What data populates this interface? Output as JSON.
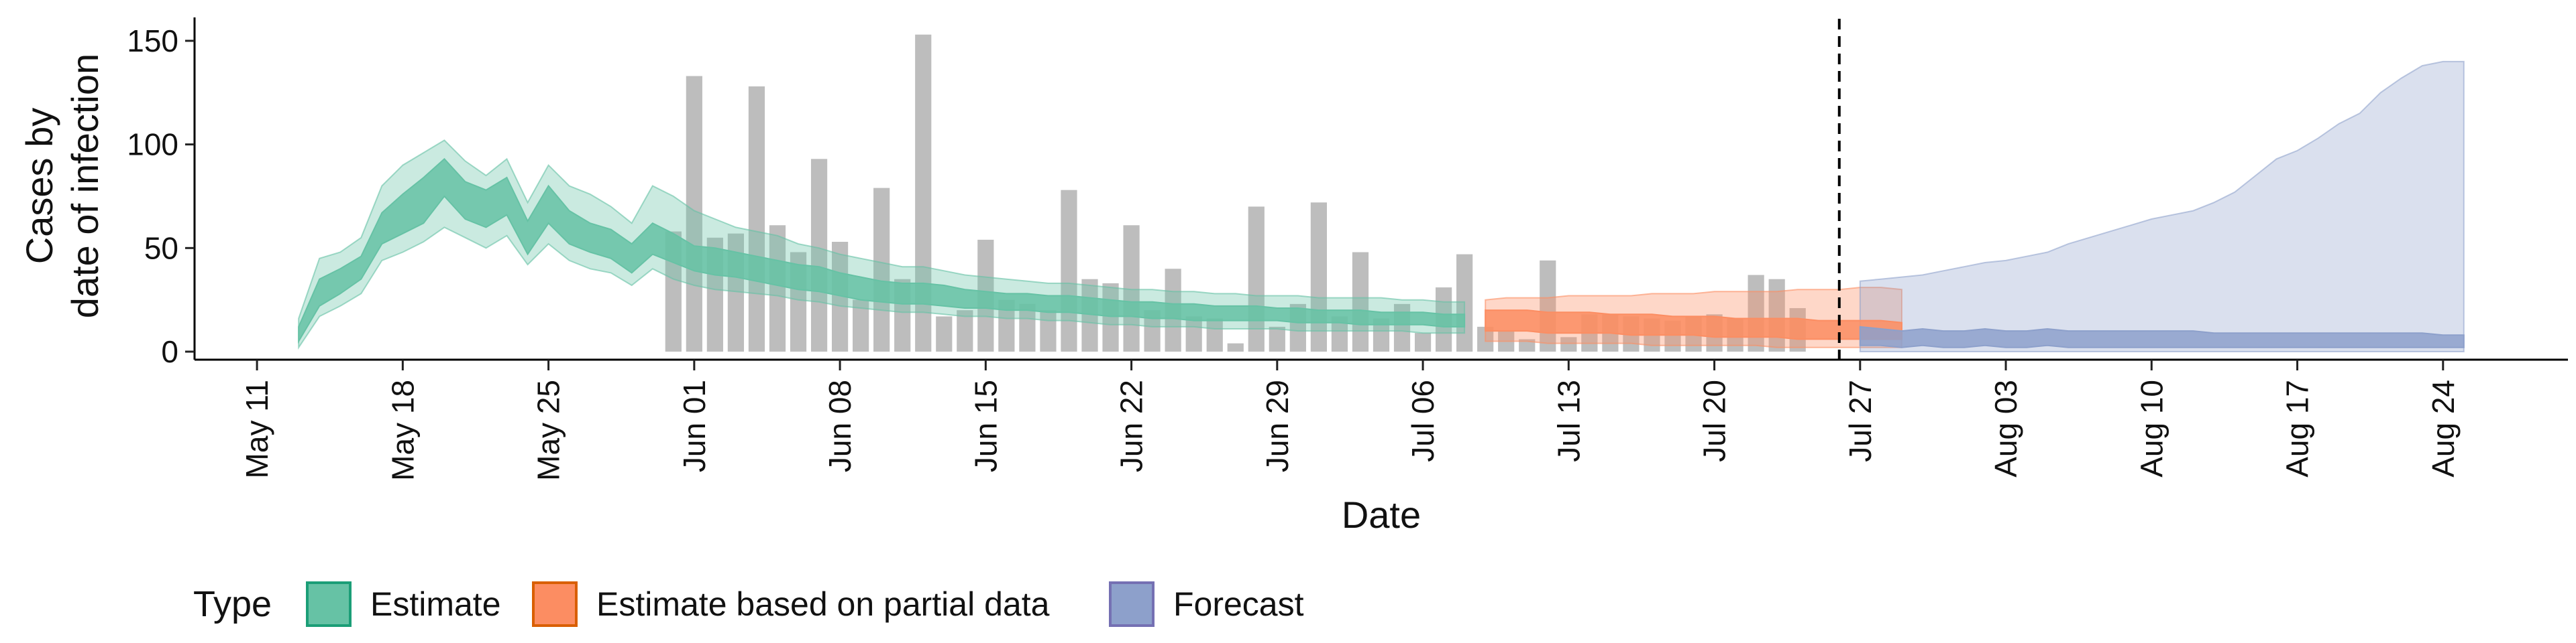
{
  "chart_data": {
    "type": "bar+area",
    "xlabel": "Date",
    "ylabel_lines": [
      "Cases by",
      "date of infection"
    ],
    "ylim": [
      0,
      160
    ],
    "y_ticks": [
      0,
      50,
      100,
      150
    ],
    "x_range": [
      "2020-05-08",
      "2020-08-30"
    ],
    "x_ticks": [
      {
        "date": "2020-05-11",
        "label": "May 11"
      },
      {
        "date": "2020-05-18",
        "label": "May 18"
      },
      {
        "date": "2020-05-25",
        "label": "May 25"
      },
      {
        "date": "2020-06-01",
        "label": "Jun 01"
      },
      {
        "date": "2020-06-08",
        "label": "Jun 08"
      },
      {
        "date": "2020-06-15",
        "label": "Jun 15"
      },
      {
        "date": "2020-06-22",
        "label": "Jun 22"
      },
      {
        "date": "2020-06-29",
        "label": "Jun 29"
      },
      {
        "date": "2020-07-06",
        "label": "Jul 06"
      },
      {
        "date": "2020-07-13",
        "label": "Jul 13"
      },
      {
        "date": "2020-07-20",
        "label": "Jul 20"
      },
      {
        "date": "2020-07-27",
        "label": "Jul 27"
      },
      {
        "date": "2020-08-03",
        "label": "Aug 03"
      },
      {
        "date": "2020-08-10",
        "label": "Aug 10"
      },
      {
        "date": "2020-08-17",
        "label": "Aug 17"
      },
      {
        "date": "2020-08-24",
        "label": "Aug 24"
      }
    ],
    "vline_date": "2020-07-26",
    "reported_cases": {
      "start_date": "2020-05-31",
      "color": "#bdbdbd",
      "values": [
        58,
        133,
        55,
        57,
        128,
        61,
        48,
        93,
        53,
        25,
        79,
        35,
        153,
        17,
        20,
        54,
        25,
        23,
        20,
        78,
        35,
        33,
        61,
        20,
        40,
        17,
        16,
        4,
        70,
        12,
        23,
        72,
        17,
        48,
        16,
        23,
        9,
        31,
        47,
        12,
        10,
        6,
        44,
        7,
        18,
        18,
        17,
        16,
        15,
        17,
        18,
        16,
        37,
        35,
        21
      ]
    },
    "series": [
      {
        "name": "Estimate",
        "color": "#66c2a5",
        "start_date": "2020-05-13",
        "median": [
          8,
          28,
          33,
          40,
          60,
          68,
          75,
          85,
          73,
          70,
          75,
          55,
          72,
          60,
          55,
          52,
          45,
          55,
          50,
          45,
          43,
          42,
          40,
          38,
          36,
          35,
          32,
          30,
          29,
          28,
          28,
          27,
          25,
          25,
          24,
          24,
          23,
          23,
          22,
          21,
          20,
          20,
          20,
          19,
          19,
          18,
          18,
          18,
          17,
          17,
          17,
          16,
          16,
          16,
          16,
          15,
          15
        ],
        "lower_50": [
          5,
          22,
          28,
          35,
          52,
          57,
          62,
          75,
          64,
          60,
          66,
          47,
          62,
          52,
          48,
          45,
          38,
          47,
          43,
          39,
          37,
          36,
          34,
          32,
          30,
          29,
          27,
          25,
          24,
          23,
          23,
          22,
          21,
          21,
          20,
          20,
          19,
          19,
          18,
          17,
          17,
          16,
          16,
          15,
          15,
          15,
          15,
          15,
          14,
          14,
          14,
          13,
          13,
          13,
          13,
          12,
          12
        ],
        "upper_50": [
          12,
          35,
          40,
          46,
          67,
          76,
          84,
          93,
          82,
          78,
          84,
          63,
          80,
          68,
          62,
          59,
          52,
          62,
          57,
          51,
          50,
          48,
          46,
          44,
          42,
          41,
          38,
          36,
          34,
          33,
          33,
          32,
          30,
          29,
          28,
          28,
          27,
          27,
          26,
          25,
          24,
          24,
          23,
          23,
          22,
          22,
          22,
          21,
          21,
          20,
          20,
          20,
          19,
          19,
          19,
          18,
          18
        ],
        "lower_90": [
          2,
          17,
          22,
          28,
          44,
          48,
          53,
          60,
          55,
          50,
          56,
          42,
          52,
          44,
          40,
          38,
          32,
          40,
          35,
          32,
          30,
          29,
          28,
          27,
          25,
          24,
          22,
          21,
          20,
          19,
          19,
          18,
          17,
          17,
          16,
          16,
          15,
          15,
          14,
          13,
          13,
          12,
          12,
          12,
          11,
          11,
          11,
          11,
          10,
          10,
          10,
          10,
          10,
          10,
          9,
          9,
          9
        ],
        "upper_90": [
          16,
          45,
          48,
          55,
          80,
          90,
          96,
          102,
          92,
          85,
          93,
          72,
          90,
          80,
          76,
          70,
          62,
          80,
          75,
          68,
          64,
          60,
          58,
          56,
          52,
          50,
          47,
          45,
          43,
          41,
          41,
          39,
          37,
          36,
          35,
          34,
          33,
          33,
          32,
          31,
          30,
          30,
          29,
          29,
          28,
          28,
          27,
          27,
          27,
          26,
          26,
          26,
          26,
          25,
          25,
          24,
          24
        ]
      },
      {
        "name": "Estimate based on partial data",
        "color": "#fc8d62",
        "start_date": "2020-07-09",
        "median": [
          15,
          15,
          15,
          14,
          14,
          14,
          13,
          13,
          13,
          12,
          12,
          12,
          12,
          11,
          11,
          11,
          11,
          10,
          10,
          10,
          10
        ],
        "lower_50": [
          10,
          10,
          10,
          9,
          9,
          9,
          9,
          8,
          8,
          8,
          8,
          7,
          7,
          7,
          7,
          6,
          6,
          6,
          6,
          6,
          6
        ],
        "upper_50": [
          20,
          20,
          20,
          19,
          19,
          19,
          18,
          18,
          18,
          17,
          17,
          17,
          16,
          16,
          16,
          16,
          15,
          15,
          15,
          15,
          14
        ],
        "lower_90": [
          5,
          5,
          5,
          4,
          4,
          4,
          4,
          4,
          3,
          3,
          3,
          3,
          3,
          3,
          2,
          2,
          2,
          2,
          2,
          2,
          2
        ],
        "upper_90": [
          25,
          26,
          26,
          26,
          27,
          27,
          27,
          27,
          28,
          28,
          28,
          29,
          29,
          29,
          29,
          30,
          30,
          30,
          31,
          31,
          30
        ]
      },
      {
        "name": "Forecast",
        "color": "#8da0cb",
        "start_date": "2020-07-27",
        "median": [
          8,
          7,
          6,
          7,
          6,
          6,
          7,
          6,
          6,
          7,
          6,
          6,
          6,
          6,
          6,
          6,
          6,
          6,
          6,
          6,
          6,
          6,
          6,
          6,
          6,
          6,
          6,
          5,
          5,
          5
        ],
        "lower_50": [
          3,
          3,
          2,
          3,
          2,
          2,
          3,
          2,
          2,
          3,
          2,
          2,
          2,
          2,
          2,
          2,
          2,
          2,
          2,
          2,
          2,
          2,
          2,
          2,
          2,
          2,
          2,
          2,
          2,
          2
        ],
        "upper_50": [
          12,
          11,
          10,
          11,
          10,
          10,
          11,
          10,
          10,
          11,
          10,
          10,
          10,
          10,
          10,
          10,
          10,
          9,
          9,
          9,
          9,
          9,
          9,
          9,
          9,
          9,
          9,
          9,
          8,
          8
        ],
        "lower_90": [
          0,
          0,
          0,
          0,
          0,
          0,
          0,
          0,
          0,
          0,
          0,
          0,
          0,
          0,
          0,
          0,
          0,
          0,
          0,
          0,
          0,
          0,
          0,
          0,
          0,
          0,
          0,
          0,
          0,
          0
        ],
        "upper_90": [
          34,
          35,
          36,
          37,
          39,
          41,
          43,
          44,
          46,
          48,
          52,
          55,
          58,
          61,
          64,
          66,
          68,
          72,
          77,
          85,
          93,
          97,
          103,
          110,
          115,
          125,
          132,
          138,
          140,
          140
        ]
      }
    ],
    "legend": {
      "title": "Type",
      "position": "bottom-left",
      "items": [
        {
          "label": "Estimate",
          "color": "#66c2a5",
          "stroke": "#1b9e77"
        },
        {
          "label": "Estimate based on partial data",
          "color": "#fc8d62",
          "stroke": "#d95f02"
        },
        {
          "label": "Forecast",
          "color": "#8da0cb",
          "stroke": "#7570b3"
        }
      ]
    },
    "grid": false
  }
}
